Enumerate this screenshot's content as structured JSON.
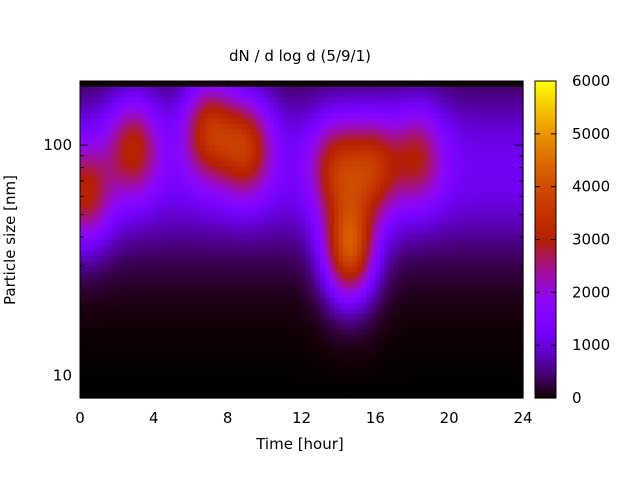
{
  "chart_data": {
    "type": "heatmap",
    "title": "dN / d log d (5/9/1)",
    "xlabel": "Time [hour]",
    "ylabel": "Particle size [nm]",
    "x_range": [
      0,
      24
    ],
    "x_ticks": [
      0,
      4,
      8,
      12,
      16,
      20,
      24
    ],
    "y_scale": "log",
    "y_range": [
      8,
      190
    ],
    "y_ticks": [
      10,
      100
    ],
    "colorbar": {
      "range": [
        0,
        6000
      ],
      "ticks": [
        0,
        1000,
        2000,
        3000,
        4000,
        5000,
        6000
      ],
      "palette": "gnuplot"
    },
    "features": [
      {
        "time": 0.3,
        "diameter_nm": 60,
        "value": 3200
      },
      {
        "time": 2.9,
        "diameter_nm": 100,
        "value": 3200
      },
      {
        "time": 7.0,
        "diameter_nm": 120,
        "value": 3600
      },
      {
        "time": 9.0,
        "diameter_nm": 100,
        "value": 3500
      },
      {
        "time": 13.9,
        "diameter_nm": 80,
        "value": 3200
      },
      {
        "time": 14.6,
        "diameter_nm": 35,
        "value": 4800
      },
      {
        "time": 15.9,
        "diameter_nm": 80,
        "value": 3300
      },
      {
        "time": 18.3,
        "diameter_nm": 90,
        "value": 2900
      }
    ]
  }
}
